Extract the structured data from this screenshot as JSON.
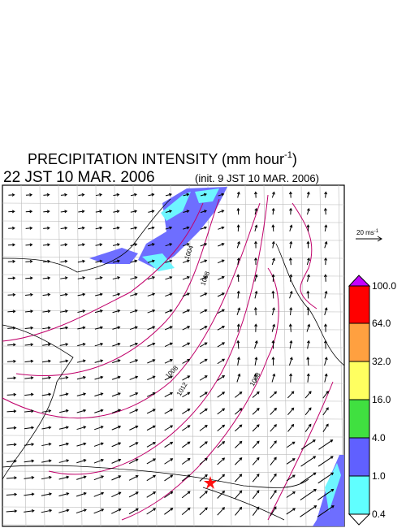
{
  "header": {
    "title": "PRECIPITATION INTENSITY (mm hour",
    "title_exponent": "-1",
    "title_close": ")",
    "valid_time": "22 JST 10 MAR. 2006",
    "init_time": "(init. 9 JST 10 MAR. 2006)"
  },
  "wind_legend": {
    "label": "20 ms",
    "exponent": "-1"
  },
  "colorbar": {
    "labels": [
      "100.0",
      "64.0",
      "32.0",
      "16.0",
      "4.0",
      "1.0",
      "0.4"
    ]
  },
  "isobar_labels": [
    "1004",
    "1008",
    "1008",
    "1012",
    "1008"
  ]
}
